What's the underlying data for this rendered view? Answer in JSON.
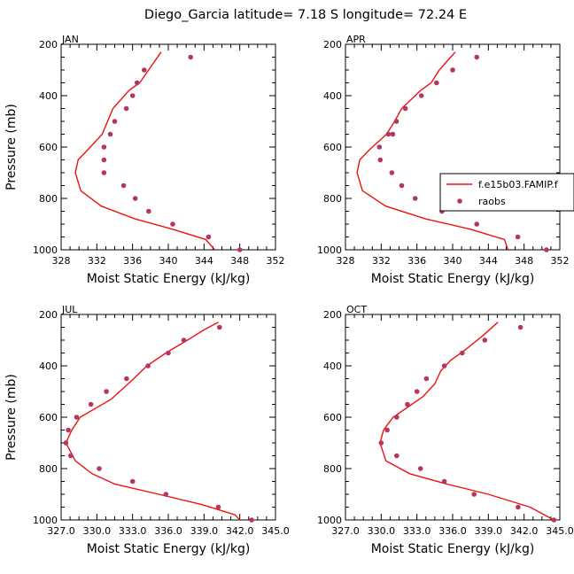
{
  "title": "Diego_Garcia  latitude= 7.18 S longitude= 72.24 E",
  "colors": {
    "model": "#ee1111",
    "raobs": "#b5365f",
    "axis": "#000000"
  },
  "legend": {
    "placement": "right of APR panel",
    "entries": [
      "f.e15b03.FAMIP.f",
      "raobs"
    ]
  },
  "chart_data": [
    {
      "type": "line+scatter",
      "panel": "JAN",
      "xlabel": "Moist Static Energy (kJ/kg)",
      "ylabel": "Pressure (mb)",
      "xlim": [
        328,
        352
      ],
      "ylim": [
        1000,
        200
      ],
      "y_inverted": true,
      "xticks": [
        328,
        332,
        336,
        340,
        344,
        348,
        352
      ],
      "xtick_labels": [
        "328",
        "332",
        "336",
        "340",
        "344",
        "348",
        "352"
      ],
      "yticks": [
        200,
        400,
        600,
        800,
        1000
      ],
      "series": [
        {
          "name": "f.e15b03.FAMIP.f",
          "kind": "line",
          "x": [
            339.2,
            337.8,
            336.8,
            335.6,
            333.8,
            333.2,
            332.6,
            331.0,
            329.9,
            329.6,
            330.2,
            332.5,
            336.3,
            340.5,
            344.2,
            345.2
          ],
          "y": [
            230,
            300,
            350,
            380,
            450,
            500,
            550,
            610,
            650,
            700,
            770,
            830,
            880,
            920,
            960,
            1000
          ]
        },
        {
          "name": "raobs",
          "kind": "scatter",
          "x": [
            342.5,
            337.3,
            336.5,
            336.0,
            335.3,
            334.0,
            333.5,
            332.8,
            332.8,
            332.8,
            335.0,
            336.3,
            337.8,
            340.5,
            344.5,
            348.0
          ],
          "y": [
            250,
            300,
            350,
            400,
            450,
            500,
            550,
            600,
            650,
            700,
            750,
            800,
            850,
            900,
            950,
            1000
          ]
        }
      ]
    },
    {
      "type": "line+scatter",
      "panel": "APR",
      "xlabel": "Moist Static Energy (kJ/kg)",
      "ylabel": "",
      "xlim": [
        328,
        352
      ],
      "ylim": [
        1000,
        200
      ],
      "y_inverted": true,
      "xticks": [
        328,
        332,
        336,
        340,
        344,
        348,
        352
      ],
      "xtick_labels": [
        "328",
        "332",
        "336",
        "340",
        "344",
        "348",
        "352"
      ],
      "yticks": [
        200,
        400,
        600,
        800,
        1000
      ],
      "series": [
        {
          "name": "f.e15b03.FAMIP.f",
          "kind": "line",
          "x": [
            340.3,
            338.5,
            337.6,
            336.4,
            334.3,
            333.5,
            332.6,
            330.7,
            329.6,
            329.3,
            329.9,
            332.5,
            337.0,
            342.0,
            345.8,
            346.2
          ],
          "y": [
            230,
            300,
            350,
            380,
            450,
            500,
            550,
            610,
            650,
            700,
            770,
            830,
            880,
            920,
            960,
            1000
          ]
        },
        {
          "name": "raobs",
          "kind": "scatter",
          "x": [
            342.7,
            340.0,
            338.2,
            336.5,
            334.7,
            333.7,
            333.3,
            332.8,
            331.8,
            331.9,
            333.2,
            334.3,
            335.8,
            338.8,
            342.7,
            347.3,
            350.5
          ],
          "y": [
            250,
            300,
            350,
            400,
            450,
            500,
            550,
            550,
            600,
            650,
            700,
            750,
            800,
            850,
            900,
            950,
            1000
          ]
        }
      ]
    },
    {
      "type": "line+scatter",
      "panel": "JUL",
      "xlabel": "Moist Static Energy (kJ/kg)",
      "ylabel": "Pressure (mb)",
      "xlim": [
        327,
        345
      ],
      "ylim": [
        1000,
        200
      ],
      "y_inverted": true,
      "xticks": [
        327,
        330,
        333,
        336,
        339,
        342,
        345
      ],
      "xtick_labels": [
        "327.0",
        "330.0",
        "333.0",
        "336.0",
        "339.0",
        "342.0",
        "345.0"
      ],
      "series": [
        {
          "name": "f.e15b03.FAMIP.f",
          "kind": "line",
          "x": [
            340.2,
            339.0,
            337.6,
            335.8,
            334.2,
            333.1,
            331.2,
            328.6,
            327.9,
            327.4,
            328.2,
            329.6,
            331.5,
            335.2,
            338.8,
            341.6,
            342.0
          ],
          "y": [
            230,
            260,
            300,
            350,
            400,
            450,
            530,
            600,
            650,
            700,
            770,
            820,
            860,
            900,
            940,
            980,
            1000
          ]
        },
        {
          "name": "raobs",
          "kind": "scatter",
          "x": [
            340.3,
            337.3,
            336.0,
            334.3,
            332.5,
            330.8,
            329.5,
            328.3,
            327.6,
            327.4,
            327.8,
            330.2,
            333.0,
            335.8,
            340.2,
            343.0
          ],
          "y": [
            250,
            300,
            350,
            400,
            450,
            500,
            550,
            600,
            650,
            700,
            750,
            800,
            850,
            900,
            950,
            1000
          ]
        }
      ]
    },
    {
      "type": "line+scatter",
      "panel": "OCT",
      "xlabel": "Moist Static Energy (kJ/kg)",
      "ylabel": "",
      "xlim": [
        327,
        345
      ],
      "ylim": [
        1000,
        200
      ],
      "y_inverted": true,
      "xticks": [
        327,
        330,
        333,
        336,
        339,
        342,
        345
      ],
      "xtick_labels": [
        "327.0",
        "330.0",
        "333.0",
        "336.0",
        "339.0",
        "342.0",
        "345.0"
      ],
      "series": [
        {
          "name": "f.e15b03.FAMIP.f",
          "kind": "line",
          "x": [
            339.8,
            338.6,
            337.0,
            335.8,
            335.0,
            334.5,
            333.5,
            331.0,
            330.2,
            329.9,
            330.4,
            332.4,
            335.5,
            339.0,
            342.5,
            344.5
          ],
          "y": [
            230,
            280,
            340,
            380,
            420,
            470,
            520,
            600,
            650,
            700,
            770,
            820,
            860,
            900,
            950,
            1000
          ]
        },
        {
          "name": "raobs",
          "kind": "scatter",
          "x": [
            341.7,
            338.7,
            336.8,
            335.3,
            333.8,
            333.0,
            332.2,
            331.3,
            330.5,
            330.0,
            331.3,
            333.3,
            335.3,
            337.8,
            341.5,
            344.5
          ],
          "y": [
            250,
            300,
            350,
            400,
            450,
            500,
            550,
            600,
            650,
            700,
            750,
            800,
            850,
            900,
            950,
            1000
          ]
        }
      ]
    }
  ]
}
